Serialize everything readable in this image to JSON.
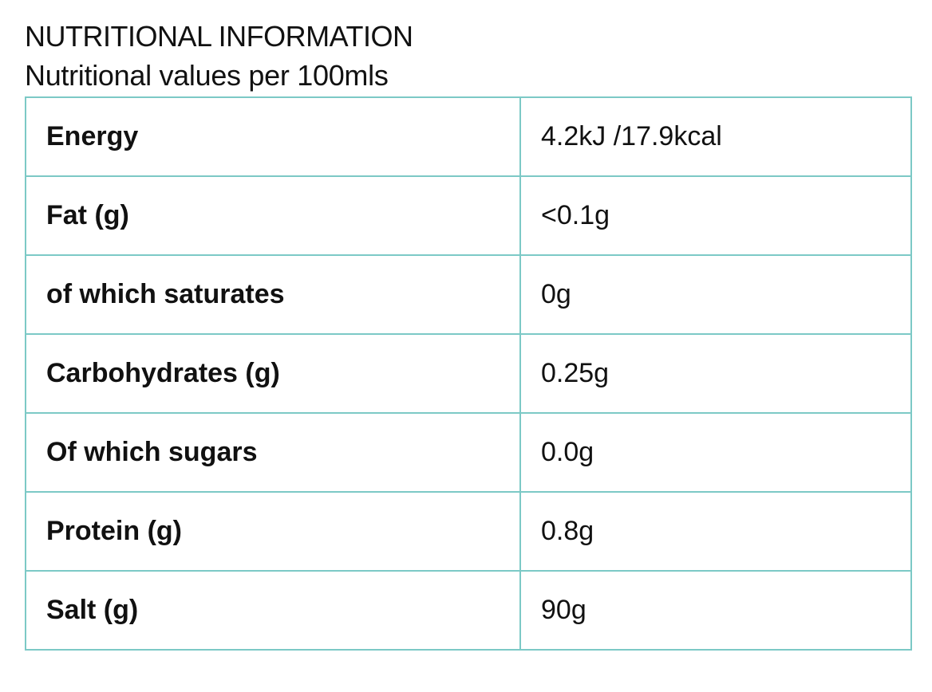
{
  "header": {
    "title": "NUTRITIONAL INFORMATION",
    "subtitle": "Nutritional values per 100mls"
  },
  "table": {
    "border_color": "#7cc9c6",
    "rows": [
      {
        "label": "Energy",
        "value": "4.2kJ /17.9kcal"
      },
      {
        "label": "Fat (g)",
        "value": "<0.1g"
      },
      {
        "label": "of which saturates",
        "value": "0g"
      },
      {
        "label": "Carbohydrates (g)",
        "value": "0.25g"
      },
      {
        "label": "Of which sugars",
        "value": "0.0g"
      },
      {
        "label": "Protein (g)",
        "value": "0.8g"
      },
      {
        "label": "Salt (g)",
        "value": "90g"
      }
    ]
  }
}
